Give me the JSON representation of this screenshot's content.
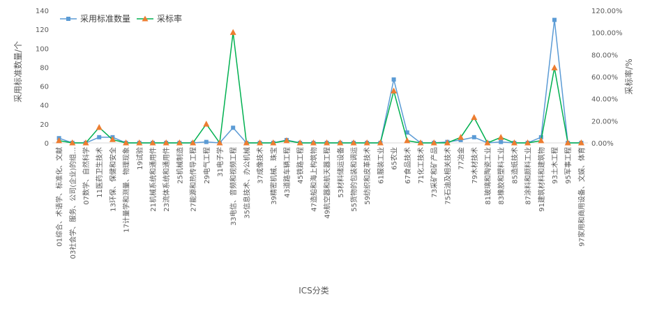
{
  "chart_data": {
    "type": "line",
    "xlabel": "ICS分类",
    "ylabel_left": "采用标准数量/个",
    "ylabel_right": "采标率/%",
    "ylim_left": [
      0,
      140
    ],
    "ylim_right": [
      0,
      120
    ],
    "yticks_left": [
      "0",
      "20",
      "40",
      "60",
      "80",
      "100",
      "120",
      "140"
    ],
    "yticks_right": [
      "0.00%",
      "20.00%",
      "40.00%",
      "60.00%",
      "80.00%",
      "100.00%",
      "120.00%"
    ],
    "legend_position": "top-left",
    "grid": false,
    "categories": [
      "01综合、术语学、标准化、文献",
      "03社会学、服务、公司(企业)的组…",
      "07数学、自然科学",
      "11医药卫生技术",
      "13环保、保健和安全",
      "17计量学和测量、物理现象",
      "19试验",
      "21机械系统和通用件",
      "23流体系统和通用件",
      "25机械制造",
      "27能源和热传导工程",
      "29电气工程",
      "31电子学",
      "33电信、音频和视频工程",
      "35信息技术、办公机械",
      "37成像技术",
      "39精密机械、珠宝",
      "43道路车辆工程",
      "45铁路工程",
      "47造船和海上构筑物",
      "49航空器和航天器工程",
      "53材料储运设备",
      "55货物的包装和调运",
      "59纺织和皮革技术",
      "61服装工业",
      "65农业",
      "67食品技术",
      "71化工技术",
      "73采矿和矿产品",
      "75石油及相关技术",
      "77冶金",
      "79木材技术",
      "81玻璃和陶瓷工业",
      "83橡胶和塑料工业",
      "85造纸技术",
      "87涂料和颜料工业",
      "91建筑材料和建筑物",
      "93土木工程",
      "95军事工程",
      "97家用和商用设备、文娱、体育"
    ],
    "series": [
      {
        "name": "采用标准数量",
        "axis": "left",
        "color": "#5b9bd5",
        "marker": "square",
        "values": [
          5,
          0,
          0,
          6,
          6,
          0,
          0,
          0,
          0,
          0,
          0,
          1,
          0,
          16,
          0,
          0,
          0,
          3,
          0,
          0,
          0,
          0,
          0,
          0,
          0,
          67,
          11,
          0,
          0,
          1,
          3,
          6,
          0,
          1,
          0,
          0,
          6,
          130,
          0,
          0
        ]
      },
      {
        "name": "采标率",
        "axis": "right",
        "color": "#00b050",
        "marker_color": "#ed7d31",
        "marker": "triangle",
        "values": [
          2,
          0,
          0,
          14,
          3,
          0,
          0,
          0,
          0,
          0,
          0,
          17,
          0,
          100,
          0,
          0,
          0,
          2,
          0,
          0,
          0,
          0,
          0,
          0,
          0,
          47,
          2,
          0,
          0,
          0,
          5,
          23,
          0,
          5,
          0,
          0,
          2,
          68,
          0,
          0
        ]
      }
    ]
  }
}
